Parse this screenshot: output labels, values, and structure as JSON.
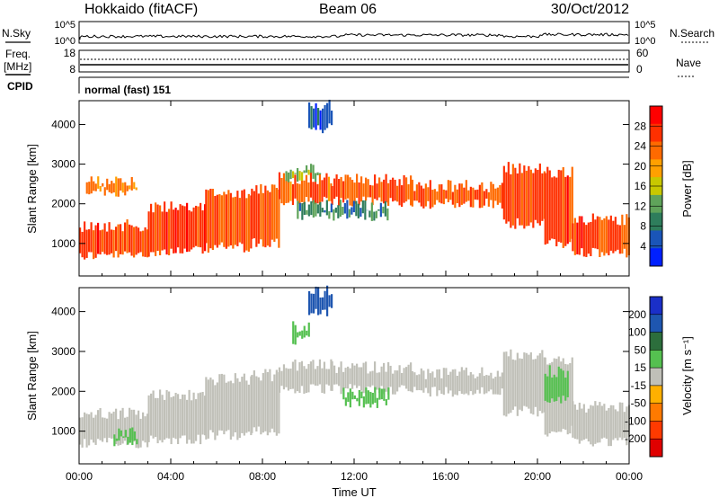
{
  "header": {
    "title": "Hokkaido (fitACF)",
    "beam": "Beam 06",
    "date": "30/Oct/2012"
  },
  "noise_panel": {
    "left_label": "N.Sky",
    "right_label": "N.Search",
    "y_ticks": [
      "10^5",
      "10^0"
    ]
  },
  "freq_panel": {
    "left_label_1": "Freq.",
    "left_label_2": "[MHz]",
    "left_ticks": [
      "18",
      "8"
    ],
    "right_label": "Nave",
    "right_ticks": [
      "60",
      "0"
    ]
  },
  "cpid_panel": {
    "label": "CPID",
    "text": "normal (fast) 151"
  },
  "colors": {
    "power_scale": [
      "#0020ff",
      "#1a55b8",
      "#2e7d5c",
      "#5fa35a",
      "#c8c800",
      "#ffa000",
      "#ff6a00",
      "#ff3000",
      "#ff0000"
    ],
    "velocity_scale": [
      "#1a2fc8",
      "#1e56b0",
      "#2c6e3c",
      "#55c050",
      "#c0c0b8",
      "#ffb000",
      "#ff7a00",
      "#ff3a00",
      "#e00000"
    ],
    "ground_scatter": "#c0c0b8"
  },
  "chart_data": [
    {
      "type": "heatmap",
      "title": "Power",
      "xlabel": "",
      "ylabel": "Slant Range [km]",
      "x_ticks": [
        "00:00",
        "04:00",
        "08:00",
        "12:00",
        "16:00",
        "20:00",
        "00:00"
      ],
      "y_ticks": [
        "1000",
        "2000",
        "3000",
        "4000"
      ],
      "xlim": [
        0,
        24
      ],
      "ylim": [
        180,
        4600
      ],
      "colorbar": {
        "label": "Power [dB]",
        "ticks": [
          "4",
          "8",
          "12",
          "16",
          "20",
          "24",
          "28"
        ],
        "range": [
          0,
          32
        ]
      },
      "echo_bands": [
        {
          "from": 0.0,
          "to": 3.0,
          "low": 700,
          "high": 1450,
          "db": 26
        },
        {
          "from": 3.0,
          "to": 5.5,
          "low": 800,
          "high": 1900,
          "db": 26
        },
        {
          "from": 5.5,
          "to": 7.5,
          "low": 900,
          "high": 2300,
          "db": 25
        },
        {
          "from": 7.5,
          "to": 8.7,
          "low": 1000,
          "high": 2400,
          "db": 24
        },
        {
          "from": 8.7,
          "to": 11.0,
          "low": 2050,
          "high": 2650,
          "db": 24
        },
        {
          "from": 11.0,
          "to": 14.5,
          "low": 2050,
          "high": 2600,
          "db": 25
        },
        {
          "from": 14.5,
          "to": 18.5,
          "low": 2000,
          "high": 2450,
          "db": 25
        },
        {
          "from": 18.5,
          "to": 20.3,
          "low": 1500,
          "high": 2900,
          "db": 25
        },
        {
          "from": 20.3,
          "to": 21.5,
          "low": 1000,
          "high": 2800,
          "db": 26
        },
        {
          "from": 21.5,
          "to": 24.0,
          "low": 750,
          "high": 1600,
          "db": 26
        }
      ],
      "weak_patches": [
        {
          "from": 9.0,
          "to": 10.5,
          "low": 2650,
          "high": 2850,
          "db": 14
        },
        {
          "from": 9.5,
          "to": 13.5,
          "low": 1700,
          "high": 1950,
          "db": 9
        },
        {
          "from": 10.0,
          "to": 11.0,
          "low": 3900,
          "high": 4500,
          "db": 6
        },
        {
          "from": 0.3,
          "to": 2.5,
          "low": 2300,
          "high": 2550,
          "db": 22
        }
      ]
    },
    {
      "type": "heatmap",
      "title": "Velocity",
      "xlabel": "Time UT",
      "ylabel": "Slant Range [km]",
      "x_ticks": [
        "00:00",
        "04:00",
        "08:00",
        "12:00",
        "16:00",
        "20:00",
        "00:00"
      ],
      "y_ticks": [
        "1000",
        "2000",
        "3000",
        "4000"
      ],
      "xlim": [
        0,
        24
      ],
      "ylim": [
        180,
        4600
      ],
      "colorbar": {
        "label": "Velocity [m s⁻¹]",
        "ticks": [
          "200",
          "100",
          "50",
          "15",
          "-15",
          "-50",
          "-100",
          "-200"
        ],
        "range": [
          -250,
          250
        ]
      },
      "ground_scatter_bands": [
        {
          "from": 0.0,
          "to": 3.0,
          "low": 700,
          "high": 1450
        },
        {
          "from": 3.0,
          "to": 5.5,
          "low": 800,
          "high": 1900
        },
        {
          "from": 5.5,
          "to": 7.5,
          "low": 900,
          "high": 2300
        },
        {
          "from": 7.5,
          "to": 8.7,
          "low": 1000,
          "high": 2400
        },
        {
          "from": 8.7,
          "to": 11.0,
          "low": 2050,
          "high": 2650
        },
        {
          "from": 11.0,
          "to": 14.5,
          "low": 2050,
          "high": 2600
        },
        {
          "from": 14.5,
          "to": 18.5,
          "low": 2000,
          "high": 2450
        },
        {
          "from": 18.5,
          "to": 20.3,
          "low": 1500,
          "high": 2900
        },
        {
          "from": 20.3,
          "to": 21.5,
          "low": 1000,
          "high": 2800
        },
        {
          "from": 21.5,
          "to": 24.0,
          "low": 750,
          "high": 1600
        }
      ],
      "ionospheric_patches": [
        {
          "from": 9.3,
          "to": 10.0,
          "low": 3300,
          "high": 3600,
          "velocity": 40
        },
        {
          "from": 11.5,
          "to": 13.5,
          "low": 1700,
          "high": 1950,
          "velocity": 40
        },
        {
          "from": 20.3,
          "to": 21.3,
          "low": 1800,
          "high": 2500,
          "velocity": 40
        },
        {
          "from": 10.0,
          "to": 11.0,
          "low": 4000,
          "high": 4500,
          "velocity": 150
        },
        {
          "from": 1.5,
          "to": 2.5,
          "low": 750,
          "high": 950,
          "velocity": 40
        }
      ]
    }
  ]
}
